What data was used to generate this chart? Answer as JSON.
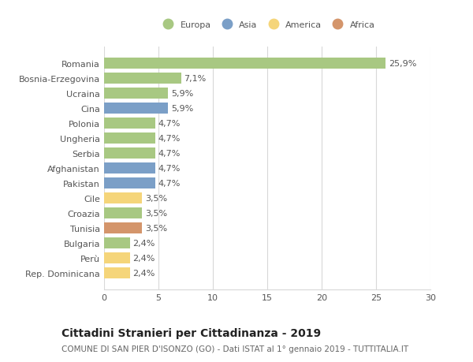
{
  "categories": [
    "Romania",
    "Bosnia-Erzegovina",
    "Ucraina",
    "Cina",
    "Polonia",
    "Ungheria",
    "Serbia",
    "Afghanistan",
    "Pakistan",
    "Cile",
    "Croazia",
    "Tunisia",
    "Bulgaria",
    "Perù",
    "Rep. Dominicana"
  ],
  "values": [
    25.9,
    7.1,
    5.9,
    5.9,
    4.7,
    4.7,
    4.7,
    4.7,
    4.7,
    3.5,
    3.5,
    3.5,
    2.4,
    2.4,
    2.4
  ],
  "labels": [
    "25,9%",
    "7,1%",
    "5,9%",
    "5,9%",
    "4,7%",
    "4,7%",
    "4,7%",
    "4,7%",
    "4,7%",
    "3,5%",
    "3,5%",
    "3,5%",
    "2,4%",
    "2,4%",
    "2,4%"
  ],
  "colors": [
    "#a8c882",
    "#a8c882",
    "#a8c882",
    "#7b9fc7",
    "#a8c882",
    "#a8c882",
    "#a8c882",
    "#7b9fc7",
    "#7b9fc7",
    "#f5d57a",
    "#a8c882",
    "#d4956b",
    "#a8c882",
    "#f5d57a",
    "#f5d57a"
  ],
  "legend": {
    "Europa": "#a8c882",
    "Asia": "#7b9fc7",
    "America": "#f5d57a",
    "Africa": "#d4956b"
  },
  "xlim": [
    0,
    30
  ],
  "xticks": [
    0,
    5,
    10,
    15,
    20,
    25,
    30
  ],
  "title": "Cittadini Stranieri per Cittadinanza - 2019",
  "subtitle": "COMUNE DI SAN PIER D'ISONZO (GO) - Dati ISTAT al 1° gennaio 2019 - TUTTITALIA.IT",
  "background_color": "#ffffff",
  "grid_color": "#d8d8d8",
  "bar_height": 0.72,
  "label_fontsize": 8,
  "tick_fontsize": 8,
  "title_fontsize": 10,
  "subtitle_fontsize": 7.5
}
